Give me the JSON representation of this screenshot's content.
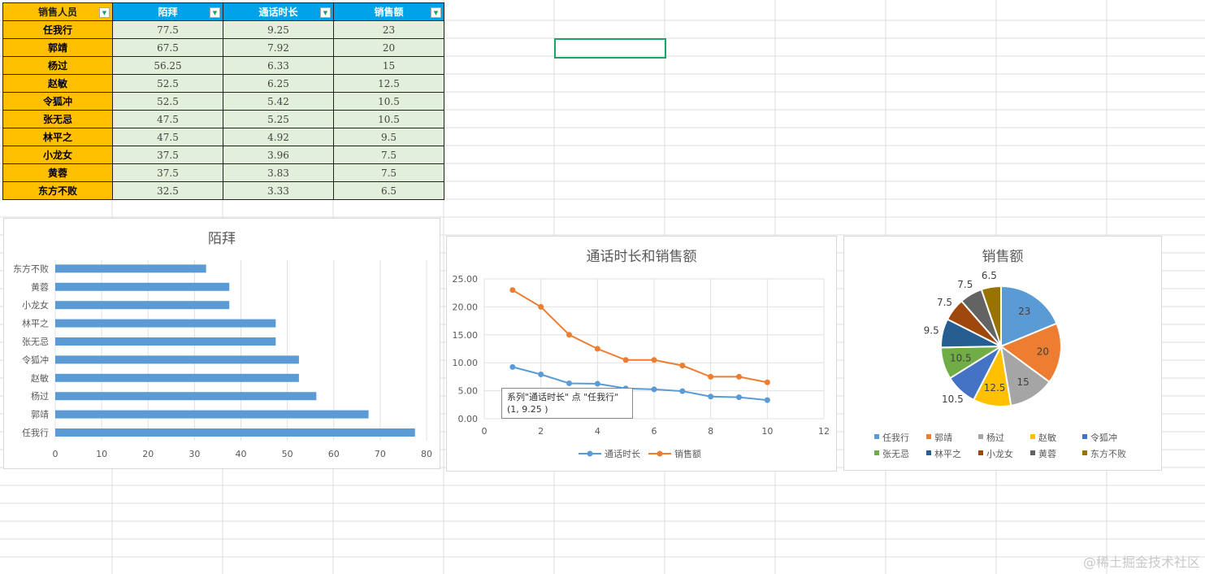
{
  "table": {
    "headers": [
      "销售人员",
      "陌拜",
      "通话时长",
      "销售额"
    ],
    "rows": [
      [
        "任我行",
        "77.5",
        "9.25",
        "23"
      ],
      [
        "郭靖",
        "67.5",
        "7.92",
        "20"
      ],
      [
        "杨过",
        "56.25",
        "6.33",
        "15"
      ],
      [
        "赵敏",
        "52.5",
        "6.25",
        "12.5"
      ],
      [
        "令狐冲",
        "52.5",
        "5.42",
        "10.5"
      ],
      [
        "张无忌",
        "47.5",
        "5.25",
        "10.5"
      ],
      [
        "林平之",
        "47.5",
        "4.92",
        "9.5"
      ],
      [
        "小龙女",
        "37.5",
        "3.96",
        "7.5"
      ],
      [
        "黄蓉",
        "37.5",
        "3.83",
        "7.5"
      ],
      [
        "东方不败",
        "32.5",
        "3.33",
        "6.5"
      ]
    ]
  },
  "chart_data": [
    {
      "type": "bar",
      "title": "陌拜",
      "categories": [
        "任我行",
        "郭靖",
        "杨过",
        "赵敏",
        "令狐冲",
        "张无忌",
        "林平之",
        "小龙女",
        "黄蓉",
        "东方不败"
      ],
      "values": [
        77.5,
        67.5,
        56.25,
        52.5,
        52.5,
        47.5,
        47.5,
        37.5,
        37.5,
        32.5
      ],
      "xlim": [
        0,
        80
      ],
      "xticks": [
        "0",
        "10",
        "20",
        "30",
        "40",
        "50",
        "60",
        "70",
        "80"
      ],
      "color": "#5b9bd5",
      "grid": true
    },
    {
      "type": "line",
      "title": "通话时长和销售额",
      "x": [
        1,
        2,
        3,
        4,
        5,
        6,
        7,
        8,
        9,
        10
      ],
      "series": [
        {
          "name": "通话时长",
          "values": [
            9.25,
            7.92,
            6.33,
            6.25,
            5.42,
            5.25,
            4.92,
            3.96,
            3.83,
            3.33
          ],
          "color": "#5b9bd5"
        },
        {
          "name": "销售额",
          "values": [
            23,
            20,
            15,
            12.5,
            10.5,
            10.5,
            9.5,
            7.5,
            7.5,
            6.5
          ],
          "color": "#ed7d31"
        }
      ],
      "xlim": [
        0,
        12
      ],
      "ylim": [
        0,
        25
      ],
      "xticks": [
        "0",
        "2",
        "4",
        "6",
        "8",
        "10",
        "12"
      ],
      "yticks": [
        "0.00",
        "5.00",
        "10.00",
        "15.00",
        "20.00",
        "25.00"
      ],
      "legend": "bottom",
      "grid": true
    },
    {
      "type": "pie",
      "title": "销售额",
      "categories": [
        "任我行",
        "郭靖",
        "杨过",
        "赵敏",
        "令狐冲",
        "张无忌",
        "林平之",
        "小龙女",
        "黄蓉",
        "东方不败"
      ],
      "values": [
        23,
        20,
        15,
        12.5,
        10.5,
        10.5,
        9.5,
        7.5,
        7.5,
        6.5
      ],
      "labels": [
        "23",
        "20",
        "15",
        "12.5",
        "10.5",
        "10.5",
        "9.5",
        "7.5",
        "7.5",
        "6.5"
      ],
      "colors": [
        "#5b9bd5",
        "#ed7d31",
        "#a5a5a5",
        "#ffc000",
        "#4472c4",
        "#70ad47",
        "#255e91",
        "#9e480e",
        "#636363",
        "#997300"
      ],
      "legend": "bottom"
    }
  ],
  "tooltip": {
    "line1": "系列\"通话时长\" 点 \"任我行\"",
    "line2": "(1, 9.25 )"
  },
  "watermark": "@稀土掘金技术社区"
}
